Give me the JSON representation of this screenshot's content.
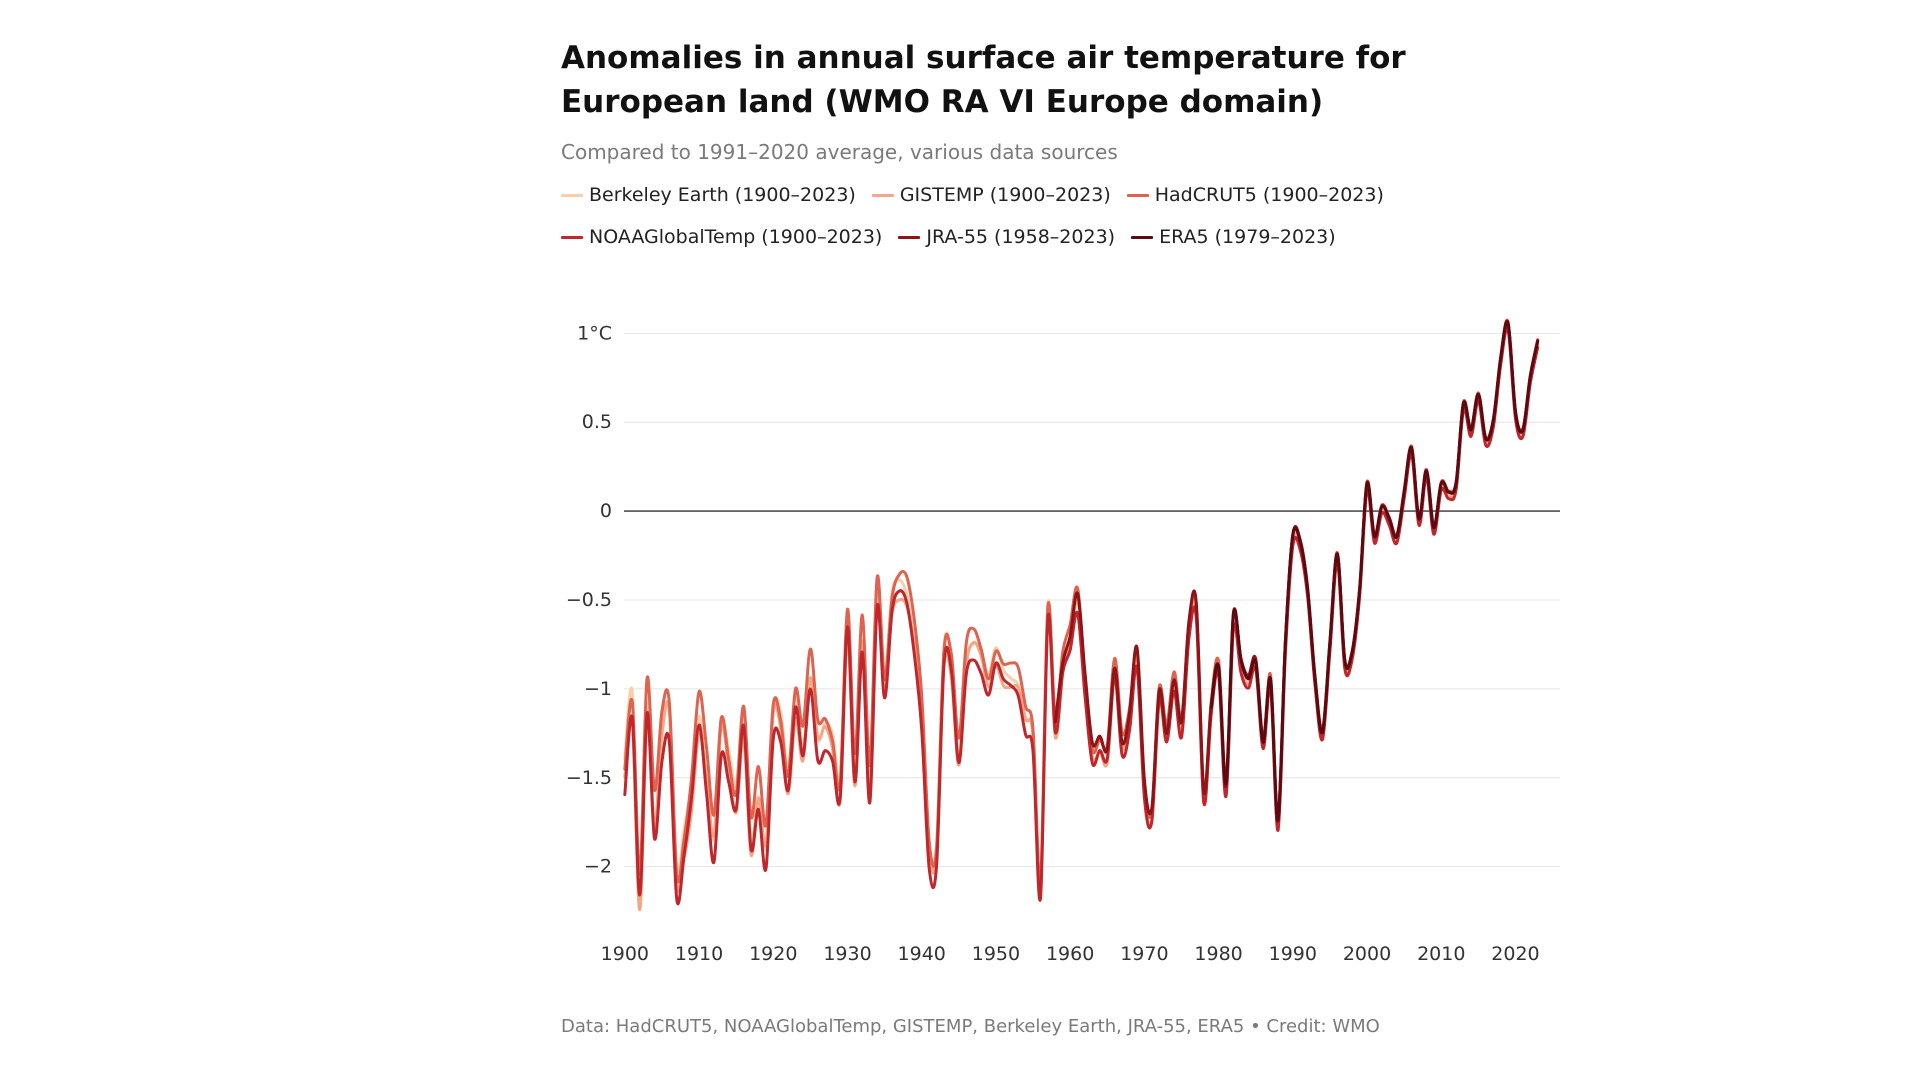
{
  "chart_data": {
    "type": "line",
    "title": "Anomalies in annual surface air temperature for European land (WMO RA VI Europe domain)",
    "subtitle": "Compared to 1991–2020 average, various data sources",
    "source": "Data: HadCRUT5, NOAAGlobalTemp, GISTEMP, Berkeley Earth, JRA-55, ERA5 • Credit: WMO",
    "xlabel": "",
    "ylabel": "",
    "xlim": [
      1898,
      2026
    ],
    "ylim": [
      -2.3,
      1.3
    ],
    "x_ticks": [
      1900,
      1910,
      1920,
      1930,
      1940,
      1950,
      1960,
      1970,
      1980,
      1990,
      2000,
      2010,
      2020
    ],
    "y_ticks": [
      {
        "value": 1,
        "label": "1°C"
      },
      {
        "value": 0.5,
        "label": "0.5"
      },
      {
        "value": 0,
        "label": "0"
      },
      {
        "value": -0.5,
        "label": "−0.5"
      },
      {
        "value": -1,
        "label": "−1"
      },
      {
        "value": -1.5,
        "label": "−1.5"
      },
      {
        "value": -2,
        "label": "−2"
      }
    ],
    "grid": true,
    "base_series": {
      "start_year": 1900,
      "values": [
        -1.45,
        -1.08,
        -2.1,
        -1.05,
        -1.7,
        -1.22,
        -1.12,
        -2.05,
        -1.85,
        -1.55,
        -1.12,
        -1.45,
        -1.8,
        -1.2,
        -1.4,
        -1.6,
        -1.15,
        -1.82,
        -1.55,
        -1.85,
        -1.12,
        -1.18,
        -1.5,
        -1.05,
        -1.3,
        -0.88,
        -1.25,
        -1.2,
        -1.3,
        -1.55,
        -0.6,
        -1.45,
        -0.68,
        -1.5,
        -0.4,
        -0.95,
        -0.5,
        -0.4,
        -0.45,
        -0.7,
        -1.1,
        -1.88,
        -1.9,
        -0.8,
        -0.85,
        -1.35,
        -0.82,
        -0.72,
        -0.8,
        -0.95,
        -0.8,
        -0.9,
        -0.92,
        -0.95,
        -1.15,
        -1.25,
        -2.1,
        -0.55,
        -1.2,
        -0.85,
        -0.7,
        -0.48,
        -0.95,
        -1.35,
        -1.3,
        -1.35,
        -0.88,
        -1.3,
        -1.15,
        -0.8,
        -1.55,
        -1.7,
        -1.02,
        -1.25,
        -0.95,
        -1.2,
        -0.65,
        -0.55,
        -1.6,
        -1.1,
        -0.88,
        -1.55,
        -0.6,
        -0.85,
        -0.95,
        -0.85,
        -1.3,
        -0.95,
        -1.75,
        -0.75,
        -0.15,
        -0.18,
        -0.45,
        -0.95,
        -1.25,
        -0.75,
        -0.25,
        -0.85,
        -0.8,
        -0.45,
        0.15,
        -0.15,
        0.02,
        -0.05,
        -0.15,
        0.1,
        0.35,
        -0.05,
        0.22,
        -0.1,
        0.15,
        0.1,
        0.15,
        0.6,
        0.45,
        0.65,
        0.4,
        0.5,
        0.85,
        1.05,
        0.55,
        0.45,
        0.75,
        0.95
      ]
    },
    "series": [
      {
        "name": "Berkeley Earth (1900–2023)",
        "color": "#f9cfa8",
        "start_year": 1900,
        "end_year": 2023,
        "offset": 0.0
      },
      {
        "name": "GISTEMP (1900–2023)",
        "color": "#f2a886",
        "start_year": 1900,
        "end_year": 2023,
        "offset": -0.06
      },
      {
        "name": "HadCRUT5 (1900–2023)",
        "color": "#de6350",
        "start_year": 1900,
        "end_year": 2023,
        "offset": 0.05
      },
      {
        "name": "NOAAGlobalTemp (1900–2023)",
        "color": "#c0272d",
        "start_year": 1900,
        "end_year": 2023,
        "offset": -0.1
      },
      {
        "name": "JRA-55 (1958–2023)",
        "color": "#8e1418",
        "start_year": 1958,
        "end_year": 2023,
        "offset": 0.03
      },
      {
        "name": "ERA5 (1979–2023)",
        "color": "#5c0a12",
        "start_year": 1979,
        "end_year": 2023,
        "offset": 0.02
      }
    ]
  }
}
